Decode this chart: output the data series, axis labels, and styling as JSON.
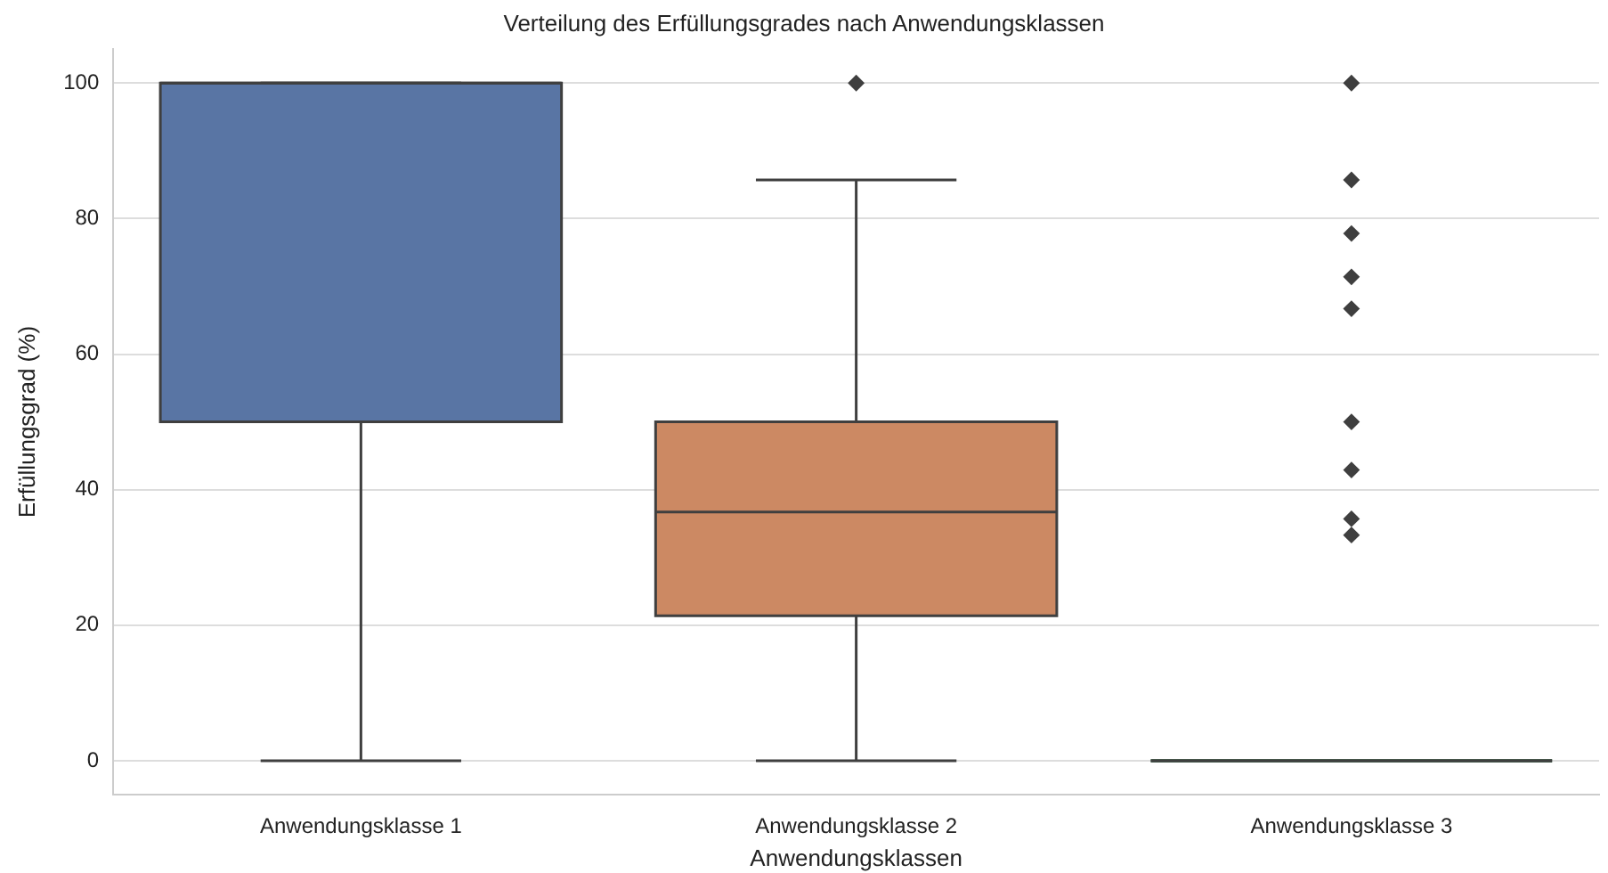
{
  "chart_data": {
    "type": "box",
    "title": "Verteilung des Erfüllungsgrades nach Anwendungsklassen",
    "xlabel": "Anwendungsklassen",
    "ylabel": "Erfüllungsgrad (%)",
    "categories": [
      "Anwendungsklasse 1",
      "Anwendungsklasse 2",
      "Anwendungsklasse 3"
    ],
    "colors": [
      "#5975a4",
      "#cc8963",
      "#5f9e6e"
    ],
    "boxes": [
      {
        "low": 0,
        "q1": 50,
        "median": 100,
        "q3": 100,
        "high": 100
      },
      {
        "low": 0,
        "q1": 21.4,
        "median": 36.7,
        "q3": 50,
        "high": 85.7,
        "outliers": [
          100
        ]
      },
      {
        "low": 0,
        "q1": 0,
        "median": 0,
        "q3": 0,
        "high": 0,
        "outliers": [
          100,
          85.7,
          77.8,
          71.4,
          66.7,
          50,
          42.9,
          35.7,
          33.3
        ]
      }
    ],
    "ylim": [
      -5,
      105
    ],
    "yticks": [
      0,
      20,
      40,
      60,
      80,
      100
    ],
    "grid": "y",
    "marker": "diamond"
  }
}
